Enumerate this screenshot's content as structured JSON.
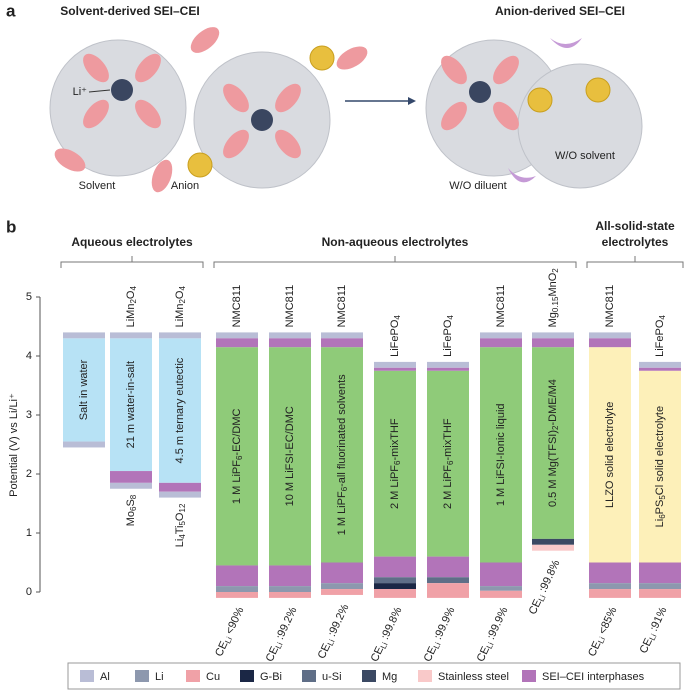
{
  "panel_a": {
    "label": "a",
    "left_title": "Solvent-derived SEI–CEI",
    "right_title": "Anion-derived SEI–CEI",
    "li": "Li⁺",
    "solvent": "Solvent",
    "anion": "Anion",
    "wo_solvent": "W/O solvent",
    "wo_diluent": "W/O diluent"
  },
  "chart_data": {
    "type": "floating-bar",
    "panel_label": "b",
    "ylabel": "Potential (V) vs Li/Li⁺",
    "ylim": [
      0,
      5
    ],
    "yticks": [
      0,
      1,
      2,
      3,
      4,
      5
    ],
    "groups": [
      {
        "name": [
          "Aqueous electrolytes"
        ],
        "columns": [
          {
            "label": [
              "Salt in water"
            ],
            "top": null,
            "bottom": null,
            "ce": null,
            "window": [
              2.55,
              4.3
            ],
            "window_color": "#b7e2f5",
            "segments": [
              {
                "color": "#b9bdd6",
                "range": [
                  4.3,
                  4.4
                ]
              },
              {
                "color": "#b9bdd6",
                "range": [
                  2.45,
                  2.55
                ]
              }
            ]
          },
          {
            "label": [
              "21 m water-in-salt"
            ],
            "top": [
              "LiMn",
              "2",
              "O",
              "4"
            ],
            "bottom": [
              "Mo",
              "6",
              "S",
              "8"
            ],
            "ce": null,
            "window": [
              2.05,
              4.3
            ],
            "window_color": "#b7e2f5",
            "segments": [
              {
                "color": "#b9bdd6",
                "range": [
                  4.3,
                  4.4
                ]
              },
              {
                "color": "#b274b9",
                "range": [
                  1.85,
                  2.05
                ]
              },
              {
                "color": "#b9bdd6",
                "range": [
                  1.75,
                  1.85
                ]
              }
            ]
          },
          {
            "label": [
              "4.5 m ternary eutectic"
            ],
            "top": [
              "LiMn",
              "2",
              "O",
              "4"
            ],
            "bottom": [
              "Li",
              "4",
              "Ti",
              "5",
              "O",
              "12"
            ],
            "ce": null,
            "window": [
              1.85,
              4.3
            ],
            "window_color": "#b7e2f5",
            "segments": [
              {
                "color": "#b9bdd6",
                "range": [
                  4.3,
                  4.4
                ]
              },
              {
                "color": "#b274b9",
                "range": [
                  1.7,
                  1.85
                ]
              },
              {
                "color": "#b9bdd6",
                "range": [
                  1.6,
                  1.7
                ]
              }
            ]
          }
        ]
      },
      {
        "name": [
          "Non-aqueous electrolytes"
        ],
        "columns": [
          {
            "label": [
              "1 M LiPF",
              "6",
              "-EC/DMC"
            ],
            "top": [
              "NMC811"
            ],
            "bottom": null,
            "ce": [
              "CE",
              "Li",
              " <90%"
            ],
            "window": [
              0.45,
              4.15
            ],
            "window_color": "#8fcb79",
            "segments": [
              {
                "color": "#b9bdd6",
                "range": [
                  4.3,
                  4.4
                ]
              },
              {
                "color": "#b274b9",
                "range": [
                  4.15,
                  4.3
                ]
              },
              {
                "color": "#b274b9",
                "range": [
                  0.1,
                  0.45
                ]
              },
              {
                "color": "#8d98ae",
                "range": [
                  0,
                  0.1
                ]
              },
              {
                "color": "#f0a1a7",
                "range": [
                  -0.1,
                  0
                ]
              }
            ]
          },
          {
            "label": [
              "10 M LiFSI-EC/DMC"
            ],
            "top": [
              "NMC811"
            ],
            "bottom": null,
            "ce": [
              "CE",
              "Li",
              " :99.2%"
            ],
            "window": [
              0.45,
              4.15
            ],
            "window_color": "#8fcb79",
            "segments": [
              {
                "color": "#b9bdd6",
                "range": [
                  4.3,
                  4.4
                ]
              },
              {
                "color": "#b274b9",
                "range": [
                  4.15,
                  4.3
                ]
              },
              {
                "color": "#b274b9",
                "range": [
                  0.1,
                  0.45
                ]
              },
              {
                "color": "#8d98ae",
                "range": [
                  0,
                  0.1
                ]
              },
              {
                "color": "#f0a1a7",
                "range": [
                  -0.1,
                  0
                ]
              }
            ]
          },
          {
            "label": [
              "1 M LiPF",
              "6",
              "-all fluorinated solvents"
            ],
            "top": [
              "NMC811"
            ],
            "bottom": null,
            "ce": [
              "CE",
              "Li",
              " :99.2%"
            ],
            "window": [
              0.5,
              4.15
            ],
            "window_color": "#8fcb79",
            "segments": [
              {
                "color": "#b9bdd6",
                "range": [
                  4.3,
                  4.4
                ]
              },
              {
                "color": "#b274b9",
                "range": [
                  4.15,
                  4.3
                ]
              },
              {
                "color": "#b274b9",
                "range": [
                  0.15,
                  0.5
                ]
              },
              {
                "color": "#8d98ae",
                "range": [
                  0.05,
                  0.15
                ]
              },
              {
                "color": "#f0a1a7",
                "range": [
                  -0.05,
                  0.05
                ]
              }
            ]
          },
          {
            "label": [
              "2 M LiPF",
              "6",
              "-mixTHF"
            ],
            "top": [
              "LiFePO",
              "4"
            ],
            "bottom": null,
            "ce": [
              "CE",
              "Li",
              " :99.8%"
            ],
            "window": [
              0.6,
              3.75
            ],
            "window_color": "#8fcb79",
            "segments": [
              {
                "color": "#b9bdd6",
                "range": [
                  3.8,
                  3.9
                ]
              },
              {
                "color": "#b274b9",
                "range": [
                  3.75,
                  3.8
                ]
              },
              {
                "color": "#b274b9",
                "range": [
                  0.25,
                  0.6
                ]
              },
              {
                "color": "#5f6e87",
                "range": [
                  0.15,
                  0.25
                ]
              },
              {
                "color": "#1b2745",
                "range": [
                  0.05,
                  0.15
                ]
              },
              {
                "color": "#f0a1a7",
                "range": [
                  -0.1,
                  0.05
                ]
              }
            ]
          },
          {
            "label": [
              "2 M LiPF",
              "6",
              "-mixTHF"
            ],
            "top": [
              "LiFePO",
              "4"
            ],
            "bottom": null,
            "ce": [
              "CE",
              "Li",
              " :99.9%"
            ],
            "window": [
              0.6,
              3.75
            ],
            "window_color": "#8fcb79",
            "segments": [
              {
                "color": "#b9bdd6",
                "range": [
                  3.8,
                  3.9
                ]
              },
              {
                "color": "#b274b9",
                "range": [
                  3.75,
                  3.8
                ]
              },
              {
                "color": "#b274b9",
                "range": [
                  0.25,
                  0.6
                ]
              },
              {
                "color": "#5f6e87",
                "range": [
                  0.15,
                  0.25
                ]
              },
              {
                "color": "#f0a1a7",
                "range": [
                  -0.1,
                  0.15
                ]
              }
            ]
          },
          {
            "label": [
              "1 M LiFSI-Ionic liquid"
            ],
            "top": [
              "NMC811"
            ],
            "bottom": null,
            "ce": [
              "CE",
              "Li",
              " :99.9%"
            ],
            "window": [
              0.5,
              4.15
            ],
            "window_color": "#8fcb79",
            "segments": [
              {
                "color": "#b9bdd6",
                "range": [
                  4.3,
                  4.4
                ]
              },
              {
                "color": "#b274b9",
                "range": [
                  4.15,
                  4.3
                ]
              },
              {
                "color": "#b274b9",
                "range": [
                  0.1,
                  0.5
                ]
              },
              {
                "color": "#8d98ae",
                "range": [
                  0.02,
                  0.1
                ]
              },
              {
                "color": "#f0a1a7",
                "range": [
                  -0.1,
                  0.02
                ]
              }
            ]
          },
          {
            "label": [
              "0.5 M Mg(TFSI)",
              "2",
              "-DME/M4"
            ],
            "top": [
              "Mg",
              "0.15",
              "MnO",
              "2"
            ],
            "bottom": null,
            "ce": [
              "CE",
              "Li",
              " :99.8%"
            ],
            "window": [
              0.9,
              4.15
            ],
            "window_color": "#8fcb79",
            "segments": [
              {
                "color": "#b9bdd6",
                "range": [
                  4.3,
                  4.4
                ]
              },
              {
                "color": "#b274b9",
                "range": [
                  4.15,
                  4.3
                ]
              },
              {
                "color": "#3b4963",
                "range": [
                  0.8,
                  0.9
                ]
              },
              {
                "color": "#f9c9c9",
                "range": [
                  0.7,
                  0.8
                ]
              }
            ]
          }
        ]
      },
      {
        "name": [
          "All-solid-state",
          "electrolytes"
        ],
        "columns": [
          {
            "label": [
              "LLZO solid electrolyte"
            ],
            "top": [
              "NMC811"
            ],
            "bottom": null,
            "ce": [
              "CE",
              "Li",
              " <85%"
            ],
            "window": [
              0.5,
              4.15
            ],
            "window_color": "#fdf0b9",
            "segments": [
              {
                "color": "#b9bdd6",
                "range": [
                  4.3,
                  4.4
                ]
              },
              {
                "color": "#b274b9",
                "range": [
                  4.15,
                  4.3
                ]
              },
              {
                "color": "#b274b9",
                "range": [
                  0.15,
                  0.5
                ]
              },
              {
                "color": "#8d98ae",
                "range": [
                  0.05,
                  0.15
                ]
              },
              {
                "color": "#f0a1a7",
                "range": [
                  -0.1,
                  0.05
                ]
              }
            ]
          },
          {
            "label": [
              "Li",
              "6",
              "PS",
              "5",
              "Cl solid electrolyte"
            ],
            "top": [
              "LiFePO",
              "4"
            ],
            "bottom": null,
            "ce": [
              "CE",
              "Li",
              " :91%"
            ],
            "window": [
              0.5,
              3.75
            ],
            "window_color": "#fdf0b9",
            "segments": [
              {
                "color": "#b9bdd6",
                "range": [
                  3.8,
                  3.9
                ]
              },
              {
                "color": "#b274b9",
                "range": [
                  3.75,
                  3.8
                ]
              },
              {
                "color": "#b274b9",
                "range": [
                  0.15,
                  0.5
                ]
              },
              {
                "color": "#8d98ae",
                "range": [
                  0.05,
                  0.15
                ]
              },
              {
                "color": "#f0a1a7",
                "range": [
                  -0.1,
                  0.05
                ]
              }
            ]
          }
        ]
      }
    ],
    "legend": [
      {
        "name": "Al",
        "color": "#b9bdd6"
      },
      {
        "name": "Li",
        "color": "#8d98ae"
      },
      {
        "name": "Cu",
        "color": "#f0a1a7"
      },
      {
        "name": "G-Bi",
        "color": "#1b2745"
      },
      {
        "name": "u-Si",
        "color": "#5f6e87"
      },
      {
        "name": "Mg",
        "color": "#3b4963"
      },
      {
        "name": "Stainless steel",
        "color": "#f9c9c9"
      },
      {
        "name": "SEI–CEI interphases",
        "color": "#b274b9"
      }
    ]
  }
}
